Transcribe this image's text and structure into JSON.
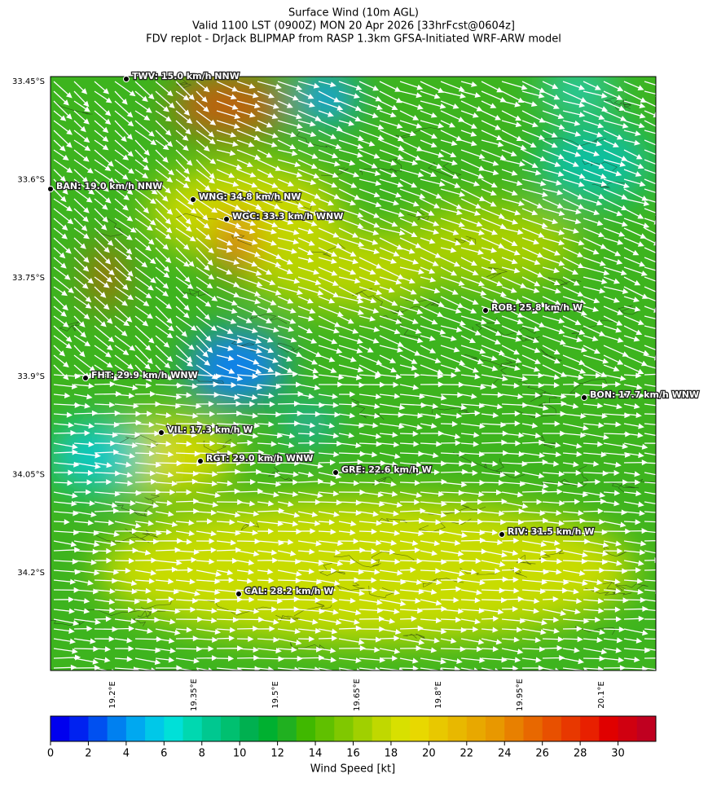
{
  "header": {
    "title": [
      "Surface Wind (10m AGL)",
      "Valid 1100 LST (0900Z) MON 20 Apr 2026 [33hrFcst@0604z]",
      "FDV replot - DrJack BLIPMAP from RASP 1.3km GFSA-Initiated WRF-ARW model"
    ]
  },
  "map": {
    "stations": [
      "TWV: 15.0 km/h NNW",
      "BAN: 19.0 km/h NNW",
      "WNG: 34.8 km/h NW",
      "WGC: 33.3 km/h WNW",
      "ROB: 25.8 km/h W",
      "FHT: 29.9 km/h WNW",
      "BON: 17.7 km/h WNW",
      "VIL: 17.3 km/h W",
      "RGT: 29.0 km/h WNW",
      "GRE: 22.6 km/h W",
      "RIV: 31.5 km/h W",
      "CAL: 28.2 km/h W"
    ],
    "latitude_labels": [
      "33.45°S",
      "33.6°S",
      "33.75°S",
      "33.9°S",
      "34.05°S",
      "34.2°S"
    ],
    "longitude_labels": [
      "19.2°E",
      "19.35°E",
      "19.5°E",
      "19.65°E",
      "19.8°E",
      "19.95°E",
      "20.1°E"
    ]
  },
  "colorbar": {
    "lim": [
      0,
      32
    ],
    "ticks": [
      0,
      2,
      4,
      6,
      8,
      10,
      12,
      14,
      16,
      18,
      20,
      22,
      24,
      26,
      28,
      30
    ],
    "label": "Wind Speed [kt]",
    "colors": [
      "#0000ee",
      "#0022f0",
      "#0050f0",
      "#0080f0",
      "#00a8f0",
      "#00c8e8",
      "#00e0d8",
      "#00d8b0",
      "#00c890",
      "#00c070",
      "#00b050",
      "#00b030",
      "#20b020",
      "#40b800",
      "#60c000",
      "#80c800",
      "#a0d000",
      "#c0d800",
      "#d8e000",
      "#e8d800",
      "#e8c800",
      "#e8b800",
      "#e8a800",
      "#e89800",
      "#e88000",
      "#e86800",
      "#e85000",
      "#e83800",
      "#e82000",
      "#e00000",
      "#d00010",
      "#c00020"
    ]
  }
}
